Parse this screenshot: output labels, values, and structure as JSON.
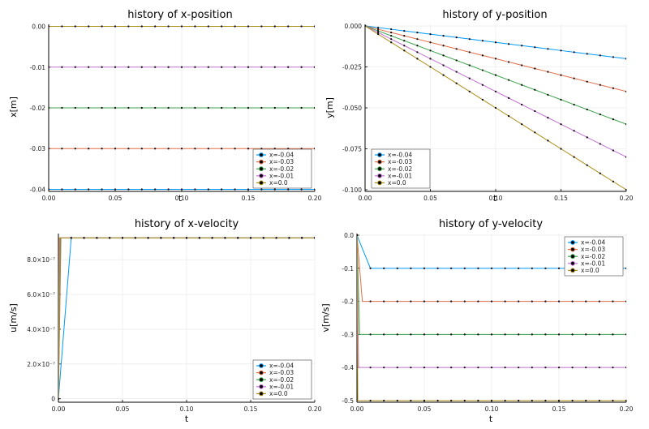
{
  "legend_labels": [
    "x=-0.04",
    "x=-0.03",
    "x=-0.02",
    "x=-0.01",
    "x=0.0"
  ],
  "series_colors": [
    "#009af9",
    "#e26f46",
    "#3da44d",
    "#c271d2",
    "#ac8e18"
  ],
  "marker_color": "#000000",
  "chart_data": [
    {
      "type": "line",
      "title": "history of x-position",
      "xlabel": "t",
      "ylabel": "x[m]",
      "xlim": [
        0,
        0.2
      ],
      "ylim": [
        -0.0405,
        0.0005
      ],
      "xticks": [
        0,
        0.05,
        0.1,
        0.15,
        0.2
      ],
      "xtick_labels": [
        "0.00",
        "0.05",
        "0.10",
        "0.15",
        "0.20"
      ],
      "yticks": [
        0,
        -0.01,
        -0.02,
        -0.03,
        -0.04
      ],
      "ytick_labels": [
        "0.00",
        "-0.01",
        "-0.02",
        "-0.03",
        "-0.04"
      ],
      "legend_position": "bottom-right",
      "grid": true,
      "t": [
        0,
        0.01,
        0.02,
        0.03,
        0.04,
        0.05,
        0.06,
        0.07,
        0.08,
        0.09,
        0.1,
        0.11,
        0.12,
        0.13,
        0.14,
        0.15,
        0.16,
        0.17,
        0.18,
        0.19,
        0.2
      ],
      "series": [
        {
          "name": "x=-0.04",
          "kind": "constant",
          "value": -0.04
        },
        {
          "name": "x=-0.03",
          "kind": "constant",
          "value": -0.03
        },
        {
          "name": "x=-0.02",
          "kind": "constant",
          "value": -0.02
        },
        {
          "name": "x=-0.01",
          "kind": "constant",
          "value": -0.01
        },
        {
          "name": "x=0.0",
          "kind": "constant",
          "value": 0.0
        }
      ]
    },
    {
      "type": "line",
      "title": "history of y-position",
      "xlabel": "t",
      "ylabel": "y[m]",
      "xlim": [
        0,
        0.2
      ],
      "ylim": [
        -0.101,
        0.001
      ],
      "xticks": [
        0,
        0.05,
        0.1,
        0.15,
        0.2
      ],
      "xtick_labels": [
        "0.00",
        "0.05",
        "0.10",
        "0.15",
        "0.20"
      ],
      "yticks": [
        0,
        -0.025,
        -0.05,
        -0.075,
        -0.1
      ],
      "ytick_labels": [
        "0.000",
        "-0.025",
        "-0.050",
        "-0.075",
        "-0.100"
      ],
      "legend_position": "bottom-left",
      "grid": true,
      "t": [
        0,
        0.01,
        0.02,
        0.03,
        0.04,
        0.05,
        0.06,
        0.07,
        0.08,
        0.09,
        0.1,
        0.11,
        0.12,
        0.13,
        0.14,
        0.15,
        0.16,
        0.17,
        0.18,
        0.19,
        0.2
      ],
      "series": [
        {
          "name": "x=-0.04",
          "kind": "linear",
          "slope": -0.1
        },
        {
          "name": "x=-0.03",
          "kind": "linear",
          "slope": -0.2
        },
        {
          "name": "x=-0.02",
          "kind": "linear",
          "slope": -0.3
        },
        {
          "name": "x=-0.01",
          "kind": "linear",
          "slope": -0.4
        },
        {
          "name": "x=0.0",
          "kind": "linear",
          "slope": -0.5
        }
      ]
    },
    {
      "type": "line",
      "title": "history of x-velocity",
      "xlabel": "t",
      "ylabel": "u[m/s]",
      "xlim": [
        0,
        0.2
      ],
      "ylim": [
        -2e-08,
        9.5e-07
      ],
      "xticks": [
        0,
        0.05,
        0.1,
        0.15,
        0.2
      ],
      "xtick_labels": [
        "0.00",
        "0.05",
        "0.10",
        "0.15",
        "0.20"
      ],
      "yticks": [
        0,
        2e-07,
        4e-07,
        6e-07,
        8e-07
      ],
      "ytick_labels": [
        "0",
        "2.0×10⁻⁷",
        "4.0×10⁻⁷",
        "6.0×10⁻⁷",
        "8.0×10⁻⁷"
      ],
      "legend_position": "bottom-right",
      "grid": true,
      "t": [
        0,
        0.01,
        0.02,
        0.03,
        0.04,
        0.05,
        0.06,
        0.07,
        0.08,
        0.09,
        0.1,
        0.11,
        0.12,
        0.13,
        0.14,
        0.15,
        0.16,
        0.17,
        0.18,
        0.19,
        0.2
      ],
      "series": [
        {
          "name": "x=-0.04",
          "kind": "step",
          "start": 0,
          "value": 9.25e-07,
          "reach_t": 0.01
        },
        {
          "name": "x=-0.03",
          "kind": "step",
          "start": 0,
          "value": 9.25e-07,
          "reach_t": 0.002
        },
        {
          "name": "x=-0.02",
          "kind": "step",
          "start": 0,
          "value": 9.25e-07,
          "reach_t": 0.0015
        },
        {
          "name": "x=-0.01",
          "kind": "step",
          "start": 0,
          "value": 9.25e-07,
          "reach_t": 0.001
        },
        {
          "name": "x=0.0",
          "kind": "step",
          "start": 0,
          "value": 9.25e-07,
          "reach_t": 0.0005
        }
      ]
    },
    {
      "type": "line",
      "title": "history of y-velocity",
      "xlabel": "t",
      "ylabel": "v[m/s]",
      "xlim": [
        0,
        0.2
      ],
      "ylim": [
        -0.505,
        0.005
      ],
      "xticks": [
        0,
        0.05,
        0.1,
        0.15,
        0.2
      ],
      "xtick_labels": [
        "0.00",
        "0.05",
        "0.10",
        "0.15",
        "0.20"
      ],
      "yticks": [
        0,
        -0.1,
        -0.2,
        -0.3,
        -0.4,
        -0.5
      ],
      "ytick_labels": [
        "0.0",
        "-0.1",
        "-0.2",
        "-0.3",
        "-0.4",
        "-0.5"
      ],
      "legend_position": "top-right",
      "grid": true,
      "t": [
        0,
        0.01,
        0.02,
        0.03,
        0.04,
        0.05,
        0.06,
        0.07,
        0.08,
        0.09,
        0.1,
        0.11,
        0.12,
        0.13,
        0.14,
        0.15,
        0.16,
        0.17,
        0.18,
        0.19,
        0.2
      ],
      "series": [
        {
          "name": "x=-0.04",
          "kind": "step",
          "start": 0,
          "value": -0.1,
          "reach_t": 0.01
        },
        {
          "name": "x=-0.03",
          "kind": "step",
          "start": 0,
          "value": -0.2,
          "reach_t": 0.004
        },
        {
          "name": "x=-0.02",
          "kind": "step",
          "start": 0,
          "value": -0.3,
          "reach_t": 0.002
        },
        {
          "name": "x=-0.01",
          "kind": "step",
          "start": 0,
          "value": -0.4,
          "reach_t": 0.0012
        },
        {
          "name": "x=0.0",
          "kind": "step",
          "start": 0,
          "value": -0.5,
          "reach_t": 0.0006
        }
      ]
    }
  ]
}
